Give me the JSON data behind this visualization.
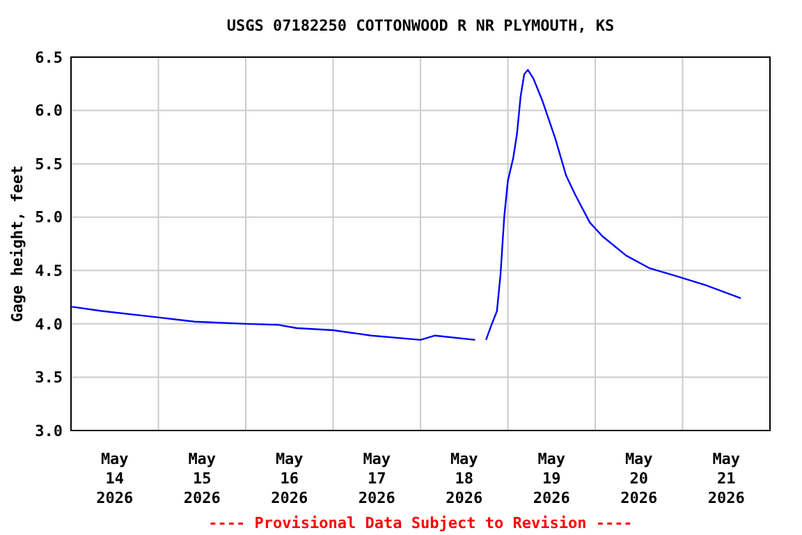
{
  "chart_data": {
    "type": "line",
    "title": "USGS 07182250 COTTONWOOD R NR PLYMOUTH, KS",
    "ylabel": "Gage height, feet",
    "annotations": [
      "---- Provisional Data Subject to Revision ----"
    ],
    "x": [
      "2026-05-14T00:15",
      "2026-05-14T08:30",
      "2026-05-15T00:00",
      "2026-05-15T10:00",
      "2026-05-16T00:00",
      "2026-05-16T09:00",
      "2026-05-16T14:00",
      "2026-05-17T00:00",
      "2026-05-17T10:30",
      "2026-05-18T00:00",
      "2026-05-18T04:00",
      "2026-05-18T15:00",
      "2026-05-18T16:30",
      "2026-05-18T18:00",
      "2026-05-18T19:30",
      "2026-05-18T21:00",
      "2026-05-18T22:00",
      "2026-05-18T23:00",
      "2026-05-19T00:00",
      "2026-05-19T01:30",
      "2026-05-19T02:30",
      "2026-05-19T03:30",
      "2026-05-19T04:30",
      "2026-05-19T05:30",
      "2026-05-19T07:00",
      "2026-05-19T09:30",
      "2026-05-19T13:00",
      "2026-05-19T16:00",
      "2026-05-19T18:30",
      "2026-05-19T22:30",
      "2026-05-20T02:00",
      "2026-05-20T08:30",
      "2026-05-20T15:00",
      "2026-05-20T22:00",
      "2026-05-21T06:30",
      "2026-05-21T16:00"
    ],
    "series": [
      {
        "color": "#0000ff",
        "values": [
          4.16,
          4.12,
          4.06,
          4.02,
          4.0,
          3.99,
          3.96,
          3.94,
          3.89,
          3.85,
          3.89,
          3.85,
          null,
          3.85,
          3.99,
          4.12,
          4.47,
          5.0,
          5.34,
          5.56,
          5.78,
          6.13,
          6.34,
          6.38,
          6.3,
          6.09,
          5.74,
          5.39,
          5.21,
          4.95,
          4.82,
          4.64,
          4.52,
          4.45,
          4.36,
          4.24
        ]
      }
    ],
    "xlim": [
      "2026-05-14T00:00",
      "2026-05-22T00:00"
    ],
    "xticks": [
      {
        "value": "2026-05-14T12:00",
        "label": "May 14 2026"
      },
      {
        "value": "2026-05-15T00:00",
        "label": null
      },
      {
        "value": "2026-05-15T12:00",
        "label": "May 15 2026"
      },
      {
        "value": "2026-05-16T00:00",
        "label": null
      },
      {
        "value": "2026-05-16T12:00",
        "label": "May 16 2026"
      },
      {
        "value": "2026-05-17T00:00",
        "label": null
      },
      {
        "value": "2026-05-17T12:00",
        "label": "May 17 2026"
      },
      {
        "value": "2026-05-18T00:00",
        "label": null
      },
      {
        "value": "2026-05-18T12:00",
        "label": "May 18 2026"
      },
      {
        "value": "2026-05-19T00:00",
        "label": null
      },
      {
        "value": "2026-05-19T12:00",
        "label": "May 19 2026"
      },
      {
        "value": "2026-05-20T00:00",
        "label": null
      },
      {
        "value": "2026-05-20T12:00",
        "label": "May 20 2026"
      },
      {
        "value": "2026-05-21T00:00",
        "label": null
      },
      {
        "value": "2026-05-21T12:00",
        "label": "May 21 2026"
      }
    ],
    "ylim": [
      3.0,
      6.5
    ],
    "yticks": [
      {
        "value": 3,
        "label": "3.0"
      },
      3.5,
      {
        "value": 4,
        "label": "4.0"
      },
      4.5,
      {
        "value": 5,
        "label": "5.0"
      },
      5.5,
      {
        "value": 6,
        "label": "6.0"
      },
      6.5
    ],
    "grid": true
  }
}
